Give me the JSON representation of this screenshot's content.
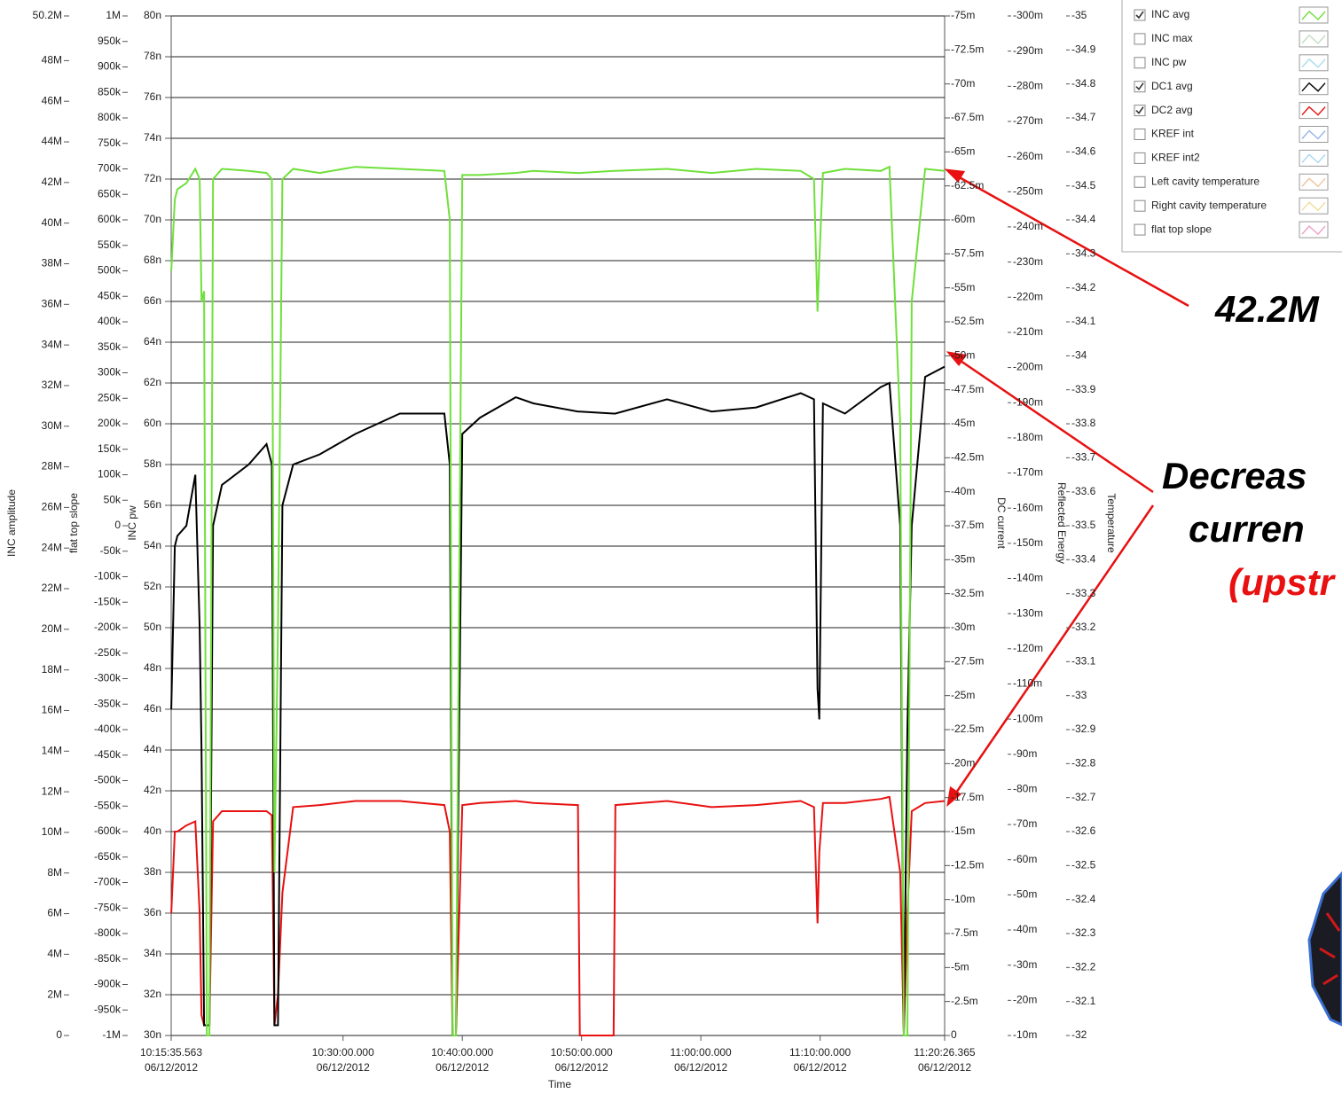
{
  "chart_data": {
    "type": "line",
    "x_label": "Time",
    "xlim": [
      "10:15:35.563",
      "11:20:26.365"
    ],
    "xticks": [
      {
        "time": "10:15:35.563",
        "date": "06/12/2012"
      },
      {
        "time": "10:30:00.000",
        "date": "06/12/2012"
      },
      {
        "time": "10:40:00.000",
        "date": "06/12/2012"
      },
      {
        "time": "10:50:00.000",
        "date": "06/12/2012"
      },
      {
        "time": "11:00:00.000",
        "date": "06/12/2012"
      },
      {
        "time": "11:10:00.000",
        "date": "06/12/2012"
      },
      {
        "time": "11:20:26.365",
        "date": "06/12/2012"
      }
    ],
    "grid": true,
    "main_axis": 2,
    "y_axes": [
      {
        "title": "INC amplitude",
        "lim": [
          0,
          50.2
        ],
        "ticks": [
          0,
          {
            "value": 2,
            "label": "2M"
          },
          {
            "value": 4,
            "label": "4M"
          },
          {
            "value": 6,
            "label": "6M"
          },
          {
            "value": 8,
            "label": "8M"
          },
          {
            "value": 10,
            "label": "10M"
          },
          {
            "value": 12,
            "label": "12M"
          },
          {
            "value": 14,
            "label": "14M"
          },
          {
            "value": 16,
            "label": "16M"
          },
          {
            "value": 18,
            "label": "18M"
          },
          {
            "value": 20,
            "label": "20M"
          },
          {
            "value": 22,
            "label": "22M"
          },
          {
            "value": 24,
            "label": "24M"
          },
          {
            "value": 26,
            "label": "26M"
          },
          {
            "value": 28,
            "label": "28M"
          },
          {
            "value": 30,
            "label": "30M"
          },
          {
            "value": 32,
            "label": "32M"
          },
          {
            "value": 34,
            "label": "34M"
          },
          {
            "value": 36,
            "label": "36M"
          },
          {
            "value": 38,
            "label": "38M"
          },
          {
            "value": 40,
            "label": "40M"
          },
          {
            "value": 42,
            "label": "42M"
          },
          {
            "value": 44,
            "label": "44M"
          },
          {
            "value": 46,
            "label": "46M"
          },
          {
            "value": 48,
            "label": "48M"
          },
          {
            "value": 50.2,
            "label": "50.2M"
          }
        ]
      },
      {
        "title": "flat top slope",
        "lim": [
          -1000,
          1000
        ],
        "ticks": [
          {
            "value": -1000,
            "label": "-1M"
          },
          {
            "value": -950,
            "label": "-950k"
          },
          {
            "value": -900,
            "label": "-900k"
          },
          {
            "value": -850,
            "label": "-850k"
          },
          {
            "value": -800,
            "label": "-800k"
          },
          {
            "value": -750,
            "label": "-750k"
          },
          {
            "value": -700,
            "label": "-700k"
          },
          {
            "value": -650,
            "label": "-650k"
          },
          {
            "value": -600,
            "label": "-600k"
          },
          {
            "value": -550,
            "label": "-550k"
          },
          {
            "value": -500,
            "label": "-500k"
          },
          {
            "value": -450,
            "label": "-450k"
          },
          {
            "value": -400,
            "label": "-400k"
          },
          {
            "value": -350,
            "label": "-350k"
          },
          {
            "value": -300,
            "label": "-300k"
          },
          {
            "value": -250,
            "label": "-250k"
          },
          {
            "value": -200,
            "label": "-200k"
          },
          {
            "value": -150,
            "label": "-150k"
          },
          {
            "value": -100,
            "label": "-100k"
          },
          {
            "value": -50,
            "label": "-50k"
          },
          0,
          {
            "value": 50,
            "label": "50k"
          },
          {
            "value": 100,
            "label": "100k"
          },
          {
            "value": 150,
            "label": "150k"
          },
          {
            "value": 200,
            "label": "200k"
          },
          {
            "value": 250,
            "label": "250k"
          },
          {
            "value": 300,
            "label": "300k"
          },
          {
            "value": 350,
            "label": "350k"
          },
          {
            "value": 400,
            "label": "400k"
          },
          {
            "value": 450,
            "label": "450k"
          },
          {
            "value": 500,
            "label": "500k"
          },
          {
            "value": 550,
            "label": "550k"
          },
          {
            "value": 600,
            "label": "600k"
          },
          {
            "value": 650,
            "label": "650k"
          },
          {
            "value": 700,
            "label": "700k"
          },
          {
            "value": 750,
            "label": "750k"
          },
          {
            "value": 800,
            "label": "800k"
          },
          {
            "value": 850,
            "label": "850k"
          },
          {
            "value": 900,
            "label": "900k"
          },
          {
            "value": 950,
            "label": "950k"
          },
          {
            "value": 1000,
            "label": "1M"
          }
        ]
      },
      {
        "title": "INC pw",
        "lim": [
          30,
          80
        ],
        "ticks": [
          {
            "value": 30,
            "label": "30n"
          },
          {
            "value": 32,
            "label": "32n"
          },
          {
            "value": 34,
            "label": "34n"
          },
          {
            "value": 36,
            "label": "36n"
          },
          {
            "value": 38,
            "label": "38n"
          },
          {
            "value": 40,
            "label": "40n"
          },
          {
            "value": 42,
            "label": "42n"
          },
          {
            "value": 44,
            "label": "44n"
          },
          {
            "value": 46,
            "label": "46n"
          },
          {
            "value": 48,
            "label": "48n"
          },
          {
            "value": 50,
            "label": "50n"
          },
          {
            "value": 52,
            "label": "52n"
          },
          {
            "value": 54,
            "label": "54n"
          },
          {
            "value": 56,
            "label": "56n"
          },
          {
            "value": 58,
            "label": "58n"
          },
          {
            "value": 60,
            "label": "60n"
          },
          {
            "value": 62,
            "label": "62n"
          },
          {
            "value": 64,
            "label": "64n"
          },
          {
            "value": 66,
            "label": "66n"
          },
          {
            "value": 68,
            "label": "68n"
          },
          {
            "value": 70,
            "label": "70n"
          },
          {
            "value": 72,
            "label": "72n"
          },
          {
            "value": 74,
            "label": "74n"
          },
          {
            "value": 76,
            "label": "76n"
          },
          {
            "value": 78,
            "label": "78n"
          },
          {
            "value": 80,
            "label": "80n"
          }
        ]
      },
      {
        "title": "DC current",
        "lim": [
          0,
          -75
        ],
        "ticks": [
          0,
          {
            "value": -2.5,
            "label": "-2.5m"
          },
          {
            "value": -5,
            "label": "-5m"
          },
          {
            "value": -7.5,
            "label": "-7.5m"
          },
          {
            "value": -10,
            "label": "-10m"
          },
          {
            "value": -12.5,
            "label": "-12.5m"
          },
          {
            "value": -15,
            "label": "-15m"
          },
          {
            "value": -17.5,
            "label": "-17.5m"
          },
          {
            "value": -20,
            "label": "-20m"
          },
          {
            "value": -22.5,
            "label": "-22.5m"
          },
          {
            "value": -25,
            "label": "-25m"
          },
          {
            "value": -27.5,
            "label": "-27.5m"
          },
          {
            "value": -30,
            "label": "-30m"
          },
          {
            "value": -32.5,
            "label": "-32.5m"
          },
          {
            "value": -35,
            "label": "-35m"
          },
          {
            "value": -37.5,
            "label": "-37.5m"
          },
          {
            "value": -40,
            "label": "-40m"
          },
          {
            "value": -42.5,
            "label": "-42.5m"
          },
          {
            "value": -45,
            "label": "-45m"
          },
          {
            "value": -47.5,
            "label": "-47.5m"
          },
          {
            "value": -50,
            "label": "-50m"
          },
          {
            "value": -52.5,
            "label": "-52.5m"
          },
          {
            "value": -55,
            "label": "-55m"
          },
          {
            "value": -57.5,
            "label": "-57.5m"
          },
          {
            "value": -60,
            "label": "-60m"
          },
          {
            "value": -62.5,
            "label": "-62.5m"
          },
          {
            "value": -65,
            "label": "-65m"
          },
          {
            "value": -67.5,
            "label": "-67.5m"
          },
          {
            "value": -70,
            "label": "-70m"
          },
          {
            "value": -72.5,
            "label": "-72.5m"
          },
          {
            "value": -75,
            "label": "-75m"
          }
        ]
      },
      {
        "title": "Reflected Energy",
        "lim": [
          -10,
          -300
        ],
        "ticks": [
          {
            "value": -10,
            "label": "-10m"
          },
          {
            "value": -20,
            "label": "-20m"
          },
          {
            "value": -30,
            "label": "-30m"
          },
          {
            "value": -40,
            "label": "-40m"
          },
          {
            "value": -50,
            "label": "-50m"
          },
          {
            "value": -60,
            "label": "-60m"
          },
          {
            "value": -70,
            "label": "-70m"
          },
          {
            "value": -80,
            "label": "-80m"
          },
          {
            "value": -90,
            "label": "-90m"
          },
          {
            "value": -100,
            "label": "-100m"
          },
          {
            "value": -110,
            "label": "-110m"
          },
          {
            "value": -120,
            "label": "-120m"
          },
          {
            "value": -130,
            "label": "-130m"
          },
          {
            "value": -140,
            "label": "-140m"
          },
          {
            "value": -150,
            "label": "-150m"
          },
          {
            "value": -160,
            "label": "-160m"
          },
          {
            "value": -170,
            "label": "-170m"
          },
          {
            "value": -180,
            "label": "-180m"
          },
          {
            "value": -190,
            "label": "-190m"
          },
          {
            "value": -200,
            "label": "-200m"
          },
          {
            "value": -210,
            "label": "-210m"
          },
          {
            "value": -220,
            "label": "-220m"
          },
          {
            "value": -230,
            "label": "-230m"
          },
          {
            "value": -240,
            "label": "-240m"
          },
          {
            "value": -250,
            "label": "-250m"
          },
          {
            "value": -260,
            "label": "-260m"
          },
          {
            "value": -270,
            "label": "-270m"
          },
          {
            "value": -280,
            "label": "-280m"
          },
          {
            "value": -290,
            "label": "-290m"
          },
          {
            "value": -300,
            "label": "-300m"
          }
        ]
      },
      {
        "title": "Temperature",
        "lim": [
          -32,
          -35
        ],
        "ticks": [
          -32,
          -32.1,
          -32.2,
          -32.3,
          -32.4,
          -32.5,
          -32.6,
          -32.7,
          -32.8,
          -32.9,
          -33,
          -33.1,
          -33.2,
          -33.3,
          -33.4,
          -33.5,
          -33.6,
          -33.7,
          -33.8,
          -33.9,
          -34,
          -34.1,
          -34.2,
          -34.3,
          -34.4,
          -34.5,
          -34.6,
          -34.7,
          -34.8,
          -34.9,
          -35
        ]
      }
    ],
    "x": [
      "10:15:36",
      "10:15:54",
      "10:16:07",
      "10:16:52",
      "10:17:37",
      "10:17:59",
      "10:18:08",
      "10:18:21",
      "10:18:35",
      "10:18:48",
      "10:19:06",
      "10:19:51",
      "10:22:05",
      "10:23:35",
      "10:24:02",
      "10:24:15",
      "10:24:33",
      "10:24:55",
      "10:25:49",
      "10:28:03",
      "10:31:02",
      "10:34:46",
      "10:38:30",
      "10:38:57",
      "10:39:11",
      "10:39:28",
      "10:40:00",
      "10:41:29",
      "10:44:29",
      "10:45:58",
      "10:49:42",
      "10:49:51",
      "10:52:41",
      "10:52:50",
      "10:57:10",
      "11:00:54",
      "11:04:38",
      "11:08:22",
      "11:09:29",
      "11:09:47",
      "11:09:56",
      "11:10:14",
      "11:12:05",
      "11:15:05",
      "11:15:49",
      "11:16:43",
      "11:17:01",
      "11:17:19",
      "11:17:41",
      "11:18:48",
      "11:20:26"
    ],
    "legend": "upper right",
    "series": [
      {
        "name": "INC avg",
        "checked": true,
        "color": "#6fe03a",
        "axis": 2,
        "values": [
          67.5,
          71,
          71.5,
          71.8,
          72.5,
          72,
          66,
          66.5,
          30,
          30,
          72,
          72.5,
          72.4,
          72.3,
          72,
          38,
          50,
          72,
          72.5,
          72.3,
          72.6,
          72.5,
          72.4,
          70,
          30,
          30,
          72.2,
          72.2,
          72.3,
          72.4,
          72.3,
          72.3,
          72.4,
          72.4,
          72.5,
          72.3,
          72.5,
          72.4,
          72,
          65.5,
          68,
          72.3,
          72.5,
          72.4,
          72.6,
          60,
          30,
          30,
          66,
          72.5,
          72.4
        ]
      },
      {
        "name": "INC max",
        "checked": false,
        "color": "#c4dcc4"
      },
      {
        "name": "INC pw",
        "checked": false,
        "color": "#a8dcec"
      },
      {
        "name": "DC1 avg",
        "checked": true,
        "color": "#000000",
        "axis": 2,
        "values": [
          46,
          54,
          54.5,
          55,
          57.5,
          50,
          44,
          30.5,
          30.5,
          30.5,
          55,
          57,
          58,
          59,
          58,
          30.5,
          30.5,
          56,
          58,
          58.5,
          59.5,
          60.5,
          60.5,
          58,
          30,
          30,
          59.5,
          60.3,
          61.3,
          61,
          60.6,
          60.6,
          60.5,
          60.5,
          61.2,
          60.6,
          60.8,
          61.5,
          61.2,
          47,
          45.5,
          61,
          60.5,
          61.8,
          62,
          55,
          30,
          45,
          55,
          62.3,
          62.8
        ]
      },
      {
        "name": "DC2 avg",
        "checked": true,
        "color": "#e81010",
        "axis": 2,
        "values": [
          36,
          40,
          40,
          40.3,
          40.5,
          36,
          31,
          30.5,
          30.5,
          30.5,
          40.5,
          41,
          41,
          41,
          40.8,
          30.5,
          32,
          37,
          41.2,
          41.3,
          41.5,
          41.5,
          41.3,
          40,
          30,
          30,
          41.3,
          41.4,
          41.5,
          41.4,
          41.3,
          30,
          30,
          41.3,
          41.5,
          41.2,
          41.3,
          41.5,
          41.2,
          35.5,
          39,
          41.4,
          41.4,
          41.6,
          41.7,
          38,
          30,
          36,
          41,
          41.4,
          41.5
        ]
      },
      {
        "name": "KREF int",
        "checked": false,
        "color": "#98b4e8"
      },
      {
        "name": "KREF int2",
        "checked": false,
        "color": "#a8d8ee"
      },
      {
        "name": "Left cavity temperature",
        "checked": false,
        "color": "#eec49c"
      },
      {
        "name": "Right cavity temperature",
        "checked": false,
        "color": "#eede9c"
      },
      {
        "name": "flat top slope",
        "checked": false,
        "color": "#eea0c6"
      }
    ],
    "annotations": [
      {
        "text": "42.2M",
        "color": "#000000"
      },
      {
        "text": "Decreas",
        "color": "#000000"
      },
      {
        "text": "curren",
        "color": "#000000"
      },
      {
        "text": "(upstr",
        "color": "#e81010"
      }
    ]
  }
}
